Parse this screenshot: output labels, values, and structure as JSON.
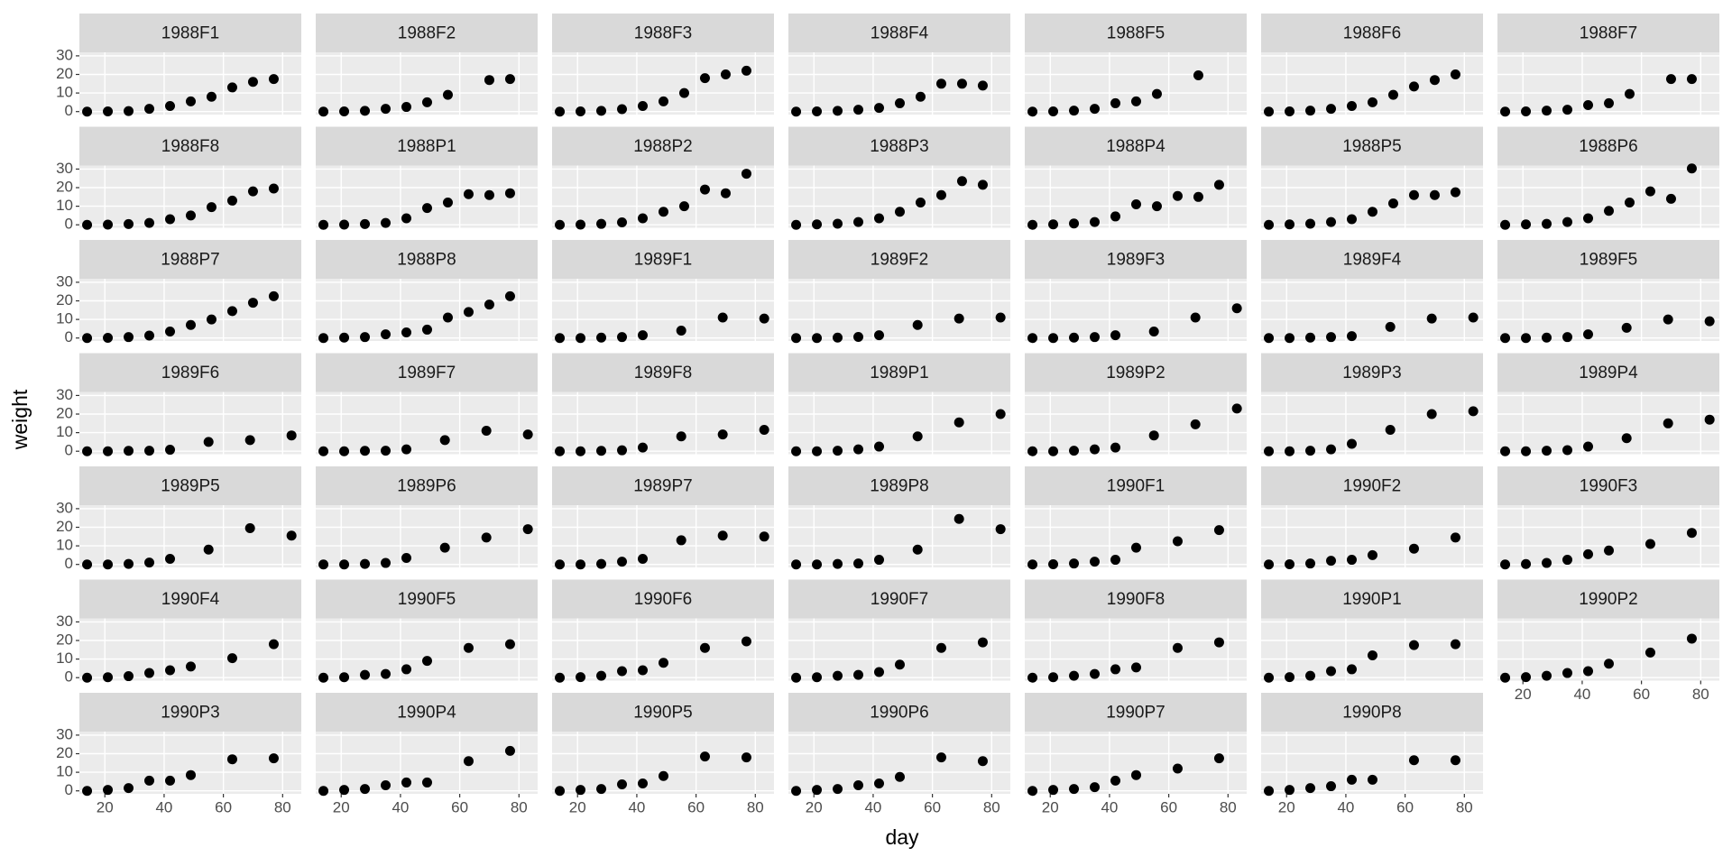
{
  "chart_data": {
    "type": "scatter",
    "xlabel": "day",
    "ylabel": "weight",
    "xlim": [
      11.4,
      86.3
    ],
    "ylim": [
      -1.6,
      31.9
    ],
    "xticks": [
      20,
      40,
      60,
      80
    ],
    "yticks": [
      0,
      10,
      20,
      30
    ],
    "grid": true,
    "color": "#000000",
    "panel_background": "#ebebeb",
    "strip_background": "#d9d9d9",
    "panels": [
      {
        "title": "1988F1",
        "x": [
          14,
          21,
          28,
          35,
          42,
          49,
          56,
          63,
          70,
          77
        ],
        "values": [
          0,
          0.1,
          0.3,
          1.5,
          3,
          5.5,
          8,
          13,
          16,
          17.5
        ]
      },
      {
        "title": "1988F2",
        "x": [
          14,
          21,
          28,
          35,
          42,
          49,
          56,
          70,
          77
        ],
        "values": [
          0,
          0.1,
          0.4,
          1.5,
          2.5,
          5,
          9,
          17,
          17.5
        ]
      },
      {
        "title": "1988F3",
        "x": [
          14,
          21,
          28,
          35,
          42,
          49,
          56,
          63,
          70,
          77
        ],
        "values": [
          0,
          0.1,
          0.4,
          1.3,
          3,
          5.5,
          10,
          18,
          20,
          22
        ]
      },
      {
        "title": "1988F4",
        "x": [
          14,
          21,
          28,
          35,
          42,
          49,
          56,
          63,
          70,
          77
        ],
        "values": [
          0,
          0.1,
          0.4,
          1,
          2,
          4.5,
          8,
          15,
          15,
          14
        ]
      },
      {
        "title": "1988F5",
        "x": [
          14,
          21,
          28,
          35,
          42,
          49,
          56,
          70
        ],
        "values": [
          0,
          0.1,
          0.5,
          1.5,
          4.5,
          5.5,
          9.5,
          19.5
        ]
      },
      {
        "title": "1988F6",
        "x": [
          14,
          21,
          28,
          35,
          42,
          49,
          56,
          63,
          70,
          77
        ],
        "values": [
          0,
          0.1,
          0.5,
          1.5,
          3,
          5,
          9,
          13.5,
          17,
          20
        ]
      },
      {
        "title": "1988F7",
        "x": [
          14,
          21,
          28,
          35,
          42,
          49,
          56,
          70,
          77
        ],
        "values": [
          0,
          0.1,
          0.5,
          1,
          3.5,
          4.5,
          9.5,
          17.5,
          17.5
        ]
      },
      {
        "title": "1988F8",
        "x": [
          14,
          21,
          28,
          35,
          42,
          49,
          56,
          63,
          70,
          77
        ],
        "values": [
          0,
          0.1,
          0.4,
          1,
          3,
          5,
          9.5,
          13,
          18,
          19.5
        ]
      },
      {
        "title": "1988P1",
        "x": [
          14,
          21,
          28,
          35,
          42,
          49,
          56,
          63,
          70,
          77
        ],
        "values": [
          0,
          0.1,
          0.4,
          1,
          3.5,
          9,
          12,
          16.5,
          16,
          17
        ]
      },
      {
        "title": "1988P2",
        "x": [
          14,
          21,
          28,
          35,
          42,
          49,
          56,
          63,
          70,
          77
        ],
        "values": [
          0,
          0.1,
          0.5,
          1.3,
          3.5,
          7,
          10,
          19,
          17,
          27.5
        ]
      },
      {
        "title": "1988P3",
        "x": [
          14,
          21,
          28,
          35,
          42,
          49,
          56,
          63,
          70,
          77
        ],
        "values": [
          0,
          0.2,
          0.6,
          1.5,
          3.5,
          7,
          12,
          16,
          23.5,
          21.5
        ]
      },
      {
        "title": "1988P4",
        "x": [
          14,
          21,
          28,
          35,
          42,
          49,
          56,
          63,
          70,
          77
        ],
        "values": [
          0,
          0.2,
          0.7,
          1.5,
          4.5,
          11,
          10,
          15.5,
          15,
          21.5
        ]
      },
      {
        "title": "1988P5",
        "x": [
          14,
          21,
          28,
          35,
          42,
          49,
          56,
          63,
          70,
          77
        ],
        "values": [
          0,
          0.2,
          0.6,
          1.5,
          3,
          7,
          11.5,
          16,
          16,
          17.5
        ]
      },
      {
        "title": "1988P6",
        "x": [
          14,
          21,
          28,
          35,
          42,
          49,
          56,
          63,
          70,
          77
        ],
        "values": [
          0,
          0.2,
          0.5,
          1.5,
          3.5,
          7.5,
          12,
          18,
          14,
          30.3
        ]
      },
      {
        "title": "1988P7",
        "x": [
          14,
          21,
          28,
          35,
          42,
          49,
          56,
          63,
          70,
          77
        ],
        "values": [
          0,
          0.1,
          0.5,
          1.3,
          3.5,
          7,
          10,
          14.5,
          19,
          22.5
        ]
      },
      {
        "title": "1988P8",
        "x": [
          14,
          21,
          28,
          35,
          42,
          49,
          56,
          63,
          70,
          77
        ],
        "values": [
          0,
          0.2,
          0.5,
          2,
          3,
          4.5,
          11,
          14,
          18,
          22.5
        ]
      },
      {
        "title": "1989F1",
        "x": [
          14,
          21,
          28,
          35,
          42,
          55,
          69,
          83
        ],
        "values": [
          0,
          0,
          0.2,
          0.5,
          1.5,
          4,
          11,
          10.5
        ]
      },
      {
        "title": "1989F2",
        "x": [
          14,
          21,
          28,
          35,
          42,
          55,
          69,
          83
        ],
        "values": [
          0,
          0,
          0.2,
          0.6,
          1.5,
          7,
          10.5,
          11
        ]
      },
      {
        "title": "1989F3",
        "x": [
          14,
          21,
          28,
          35,
          42,
          55,
          69,
          83
        ],
        "values": [
          0,
          0,
          0.2,
          0.5,
          1.5,
          3.5,
          11,
          16
        ]
      },
      {
        "title": "1989F4",
        "x": [
          14,
          21,
          28,
          35,
          42,
          55,
          69,
          83
        ],
        "values": [
          0,
          0,
          0.2,
          0.5,
          1,
          6,
          10.5,
          11
        ]
      },
      {
        "title": "1989F5",
        "x": [
          14,
          21,
          28,
          35,
          42,
          55,
          69,
          83
        ],
        "values": [
          0,
          0,
          0.2,
          0.5,
          2,
          5.5,
          10,
          9
        ]
      },
      {
        "title": "1989F6",
        "x": [
          14,
          21,
          28,
          35,
          42,
          55,
          69,
          83
        ],
        "values": [
          0,
          0,
          0.2,
          0.3,
          0.8,
          5,
          6,
          8.5
        ]
      },
      {
        "title": "1989F7",
        "x": [
          14,
          21,
          28,
          35,
          42,
          55,
          69,
          83
        ],
        "values": [
          0,
          0,
          0.2,
          0.3,
          1,
          6,
          11,
          9
        ]
      },
      {
        "title": "1989F8",
        "x": [
          14,
          21,
          28,
          35,
          42,
          55,
          69,
          83
        ],
        "values": [
          0,
          0,
          0.2,
          0.5,
          2,
          8,
          9,
          11.5
        ]
      },
      {
        "title": "1989P1",
        "x": [
          14,
          21,
          28,
          35,
          42,
          55,
          69,
          83
        ],
        "values": [
          0,
          0,
          0.3,
          1,
          2.5,
          8,
          15.5,
          20
        ]
      },
      {
        "title": "1989P2",
        "x": [
          14,
          21,
          28,
          35,
          42,
          55,
          69,
          83
        ],
        "values": [
          0,
          0,
          0.3,
          1,
          2,
          8.5,
          14.5,
          23
        ]
      },
      {
        "title": "1989P3",
        "x": [
          14,
          21,
          28,
          35,
          42,
          55,
          69,
          83
        ],
        "values": [
          0,
          0,
          0.3,
          1,
          4,
          11.5,
          20,
          21.5
        ]
      },
      {
        "title": "1989P4",
        "x": [
          14,
          21,
          28,
          35,
          42,
          55,
          69,
          83
        ],
        "values": [
          0,
          0,
          0.3,
          0.6,
          2.5,
          7,
          15,
          17
        ]
      },
      {
        "title": "1989P5",
        "x": [
          14,
          21,
          28,
          35,
          42,
          55,
          69,
          83
        ],
        "values": [
          0,
          0,
          0.3,
          1,
          3,
          8,
          19.5,
          15.5
        ]
      },
      {
        "title": "1989P6",
        "x": [
          14,
          21,
          28,
          35,
          42,
          55,
          69,
          83
        ],
        "values": [
          0,
          0,
          0.3,
          0.8,
          3.5,
          9,
          14.5,
          19
        ]
      },
      {
        "title": "1989P7",
        "x": [
          14,
          21,
          28,
          35,
          42,
          55,
          69,
          83
        ],
        "values": [
          0,
          0,
          0.3,
          1.5,
          3,
          13,
          15.5,
          15
        ]
      },
      {
        "title": "1989P8",
        "x": [
          14,
          21,
          28,
          35,
          42,
          55,
          69,
          83
        ],
        "values": [
          0,
          0,
          0.3,
          0.5,
          2.5,
          8,
          24.5,
          19
        ]
      },
      {
        "title": "1990F1",
        "x": [
          14,
          21,
          28,
          35,
          42,
          49,
          63,
          77
        ],
        "values": [
          0,
          0.1,
          0.5,
          1.5,
          2.5,
          9,
          12.5,
          18.5
        ]
      },
      {
        "title": "1990F2",
        "x": [
          14,
          21,
          28,
          35,
          42,
          49,
          63,
          77
        ],
        "values": [
          0,
          0.1,
          0.5,
          2,
          2.5,
          5,
          8.5,
          14.5
        ]
      },
      {
        "title": "1990F3",
        "x": [
          14,
          21,
          28,
          35,
          42,
          49,
          63,
          77
        ],
        "values": [
          0,
          0.2,
          0.8,
          2.5,
          5.5,
          7.5,
          11,
          17
        ]
      },
      {
        "title": "1990F4",
        "x": [
          14,
          21,
          28,
          35,
          42,
          49,
          63,
          77
        ],
        "values": [
          0,
          0.2,
          0.8,
          2.5,
          4,
          6,
          10.5,
          18
        ]
      },
      {
        "title": "1990F5",
        "x": [
          14,
          21,
          28,
          35,
          42,
          49,
          63,
          77
        ],
        "values": [
          0,
          0.2,
          1.5,
          2,
          4.5,
          9,
          16,
          18
        ]
      },
      {
        "title": "1990F6",
        "x": [
          14,
          21,
          28,
          35,
          42,
          49,
          63,
          77
        ],
        "values": [
          0,
          0.3,
          1,
          3.5,
          4,
          8,
          16,
          19.5
        ]
      },
      {
        "title": "1990F7",
        "x": [
          14,
          21,
          28,
          35,
          42,
          49,
          63,
          77
        ],
        "values": [
          0,
          0.2,
          1,
          1.5,
          3,
          7,
          16,
          19
        ]
      },
      {
        "title": "1990F8",
        "x": [
          14,
          21,
          28,
          35,
          42,
          49,
          63,
          77
        ],
        "values": [
          0,
          0.2,
          1,
          2,
          4.5,
          5.5,
          16,
          19
        ]
      },
      {
        "title": "1990P1",
        "x": [
          14,
          21,
          28,
          35,
          42,
          49,
          63,
          77
        ],
        "values": [
          0,
          0.3,
          1,
          3.5,
          4.5,
          12,
          17.5,
          18
        ]
      },
      {
        "title": "1990P2",
        "x": [
          14,
          21,
          28,
          35,
          42,
          49,
          63,
          77
        ],
        "values": [
          0,
          0.3,
          1,
          2.5,
          3.5,
          7.5,
          13.5,
          21
        ]
      },
      {
        "title": "1990P3",
        "x": [
          14,
          21,
          28,
          35,
          42,
          49,
          63,
          77
        ],
        "values": [
          0,
          0.5,
          1.5,
          5.5,
          5.5,
          8.5,
          17,
          17.5
        ]
      },
      {
        "title": "1990P4",
        "x": [
          14,
          21,
          28,
          35,
          42,
          49,
          63,
          77
        ],
        "values": [
          0,
          0.5,
          1,
          3,
          4.5,
          4.5,
          16,
          21.5
        ]
      },
      {
        "title": "1990P5",
        "x": [
          14,
          21,
          28,
          35,
          42,
          49,
          63,
          77
        ],
        "values": [
          0,
          0.5,
          1,
          3.5,
          4,
          8,
          18.5,
          18
        ]
      },
      {
        "title": "1990P6",
        "x": [
          14,
          21,
          28,
          35,
          42,
          49,
          63,
          77
        ],
        "values": [
          0,
          0.5,
          1,
          3,
          4,
          7.5,
          18,
          16
        ]
      },
      {
        "title": "1990P7",
        "x": [
          14,
          21,
          28,
          35,
          42,
          49,
          63,
          77
        ],
        "values": [
          0,
          0.5,
          1,
          2,
          5.5,
          8.5,
          12,
          17.5
        ]
      },
      {
        "title": "1990P8",
        "x": [
          14,
          21,
          28,
          35,
          42,
          49,
          63,
          77
        ],
        "values": [
          0,
          0.5,
          1.5,
          2.5,
          6,
          6,
          16.5,
          16.5
        ]
      }
    ]
  }
}
